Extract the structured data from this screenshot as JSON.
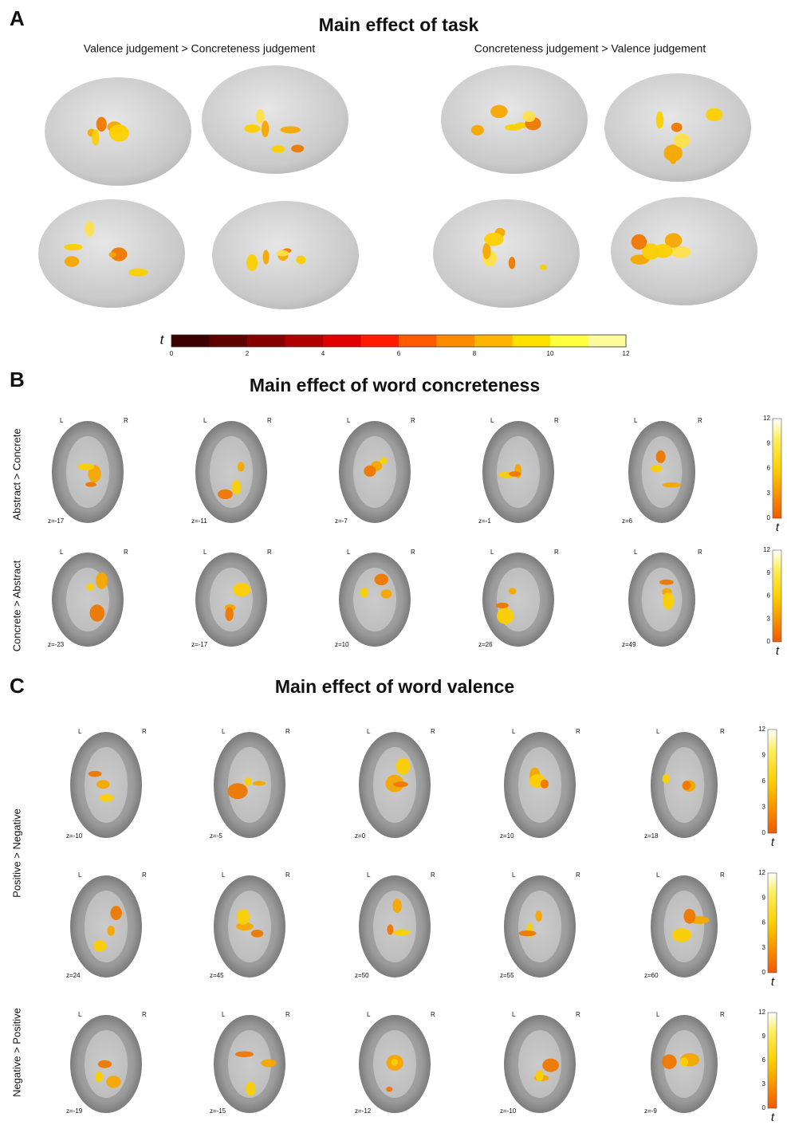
{
  "panels": [
    {
      "label": "A",
      "title": "Main effect of task",
      "contrasts": [
        "Valence judgement > Concreteness judgement",
        "Concreteness judgement > Valence  judgement"
      ],
      "colorbar": {
        "symbol": "t",
        "ticks": [
          0,
          2,
          4,
          6,
          8,
          10,
          12
        ]
      }
    },
    {
      "label": "B",
      "title": "Main effect of word concreteness",
      "orientation": [
        "L",
        "R"
      ],
      "colorbar": {
        "symbol": "t",
        "ticks": [
          0,
          3,
          6,
          9,
          12
        ]
      },
      "groups": [
        {
          "label": "Abstract > Concrete",
          "rows": [
            [
              "z=-17",
              "z=-11",
              "z=-7",
              "z=-1",
              "z=6"
            ]
          ]
        },
        {
          "label": "Concrete > Abstract",
          "rows": [
            [
              "z=-23",
              "z=-17",
              "z=10",
              "z=26",
              "z=49"
            ]
          ]
        }
      ]
    },
    {
      "label": "C",
      "title": "Main effect of word valence",
      "orientation": [
        "L",
        "R"
      ],
      "colorbar": {
        "symbol": "t",
        "ticks": [
          0,
          3,
          6,
          9,
          12
        ]
      },
      "groups": [
        {
          "label": "Positive > Negative",
          "rows": [
            [
              "z=-10",
              "z=-5",
              "z=0",
              "z=10",
              "z=18"
            ],
            [
              "z=24",
              "z=45",
              "z=50",
              "z=55",
              "z=60"
            ]
          ]
        },
        {
          "label": "Negative > Positive",
          "rows": [
            [
              "z=-19",
              "z=-15",
              "z=-12",
              "z=-10",
              "z=-9"
            ]
          ]
        }
      ]
    }
  ]
}
